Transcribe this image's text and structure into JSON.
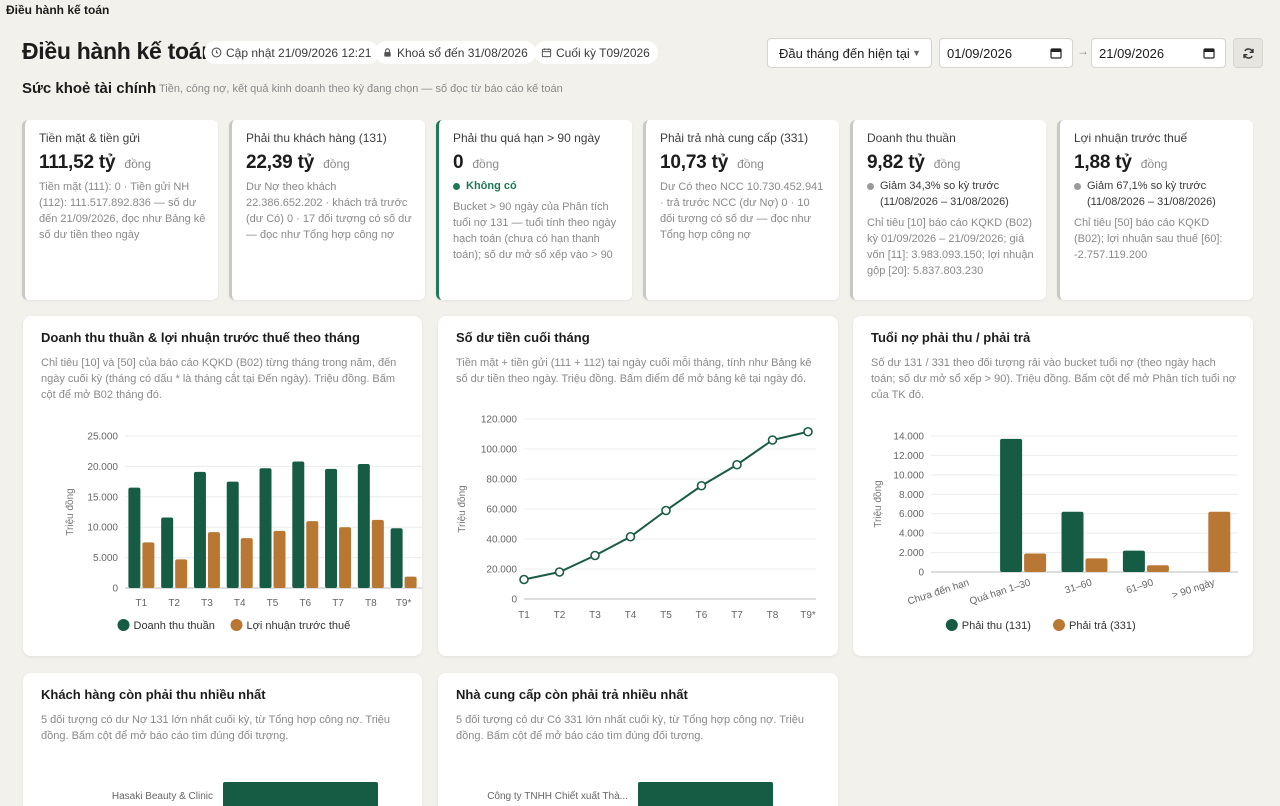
{
  "window_title": "Điều hành kế toán",
  "header": {
    "title": "Điều hành kế toán",
    "updated": "Cập nhật 21/09/2026 12:21",
    "locked": "Khoá sổ đến 31/08/2026",
    "period_end": "Cuối kỳ T09/2026",
    "range_select": "Đầu tháng đến hiện tại",
    "date_from": "01/09/2026",
    "date_to": "21/09/2026",
    "arrow": "→"
  },
  "section": {
    "title": "Sức khoẻ tài chính",
    "subtitle": "Tiền, công nợ, kết quả kinh doanh theo kỳ đang chọn — số đọc từ báo cáo kế toán"
  },
  "kpis": [
    {
      "label": "Tiền mặt & tiền gửi",
      "value": "111,52 tỷ",
      "unit": "đồng",
      "status": "",
      "note": "Tiền mặt (111): 0 · Tiền gửi NH (112): 111.517.892.836 — số dư đến 21/09/2026, đọc như Bảng kê số dư tiền theo ngày"
    },
    {
      "label": "Phải thu khách hàng (131)",
      "value": "22,39 tỷ",
      "unit": "đồng",
      "status": "",
      "note": "Dư Nợ theo khách 22.386.652.202 · khách trả trước (dư Có) 0 · 17 đối tượng có số dư — đọc như Tổng hợp công nợ"
    },
    {
      "label": "Phải thu quá hạn > 90 ngày",
      "value": "0",
      "unit": "đồng",
      "status": "Không có",
      "note": "Bucket > 90 ngày của Phân tích tuổi nợ 131 — tuổi tính theo ngày hạch toán (chưa có hạn thanh toán); số dư mở sổ xếp vào > 90"
    },
    {
      "label": "Phải trả nhà cung cấp (331)",
      "value": "10,73 tỷ",
      "unit": "đồng",
      "status": "",
      "note": "Dư Có theo NCC 10.730.452.941 · trả trước NCC (dư Nợ) 0 · 10 đối tượng có số dư — đọc như Tổng hợp công nợ"
    },
    {
      "label": "Doanh thu thuần",
      "value": "9,82 tỷ",
      "unit": "đồng",
      "status": "Giảm 34,3% so kỳ trước (11/08/2026 – 31/08/2026)",
      "note": "Chỉ tiêu [10] báo cáo KQKD (B02) kỳ 01/09/2026 – 21/09/2026; giá vốn [11]: 3.983.093.150; lợi nhuận gộp [20]: 5.837.803.230"
    },
    {
      "label": "Lợi nhuận trước thuế",
      "value": "1,88 tỷ",
      "unit": "đồng",
      "status": "Giảm 67,1% so kỳ trước (11/08/2026 – 31/08/2026)",
      "note": "Chỉ tiêu [50] báo cáo KQKD (B02); lợi nhuận sau thuế [60]: -2.757.119.200"
    }
  ],
  "colors": {
    "green": "#165c45",
    "orange": "#b87733",
    "line": "#1a5c45",
    "status_green": "#1e7a55",
    "status_gray": "#9a9a9a"
  },
  "cards": {
    "monthly": {
      "title": "Doanh thu thuần & lợi nhuận trước thuế theo tháng",
      "desc": "Chỉ tiêu [10] và [50] của báo cáo KQKD (B02) từng tháng trong năm, đến ngày cuối kỳ (tháng có dấu * là tháng cắt tại Đến ngày). Triệu đồng. Bấm cột để mở B02 tháng đó."
    },
    "cash": {
      "title": "Số dư tiền cuối tháng",
      "desc": "Tiền mặt + tiền gửi (111 + 112) tại ngày cuối mỗi tháng, tính như Bảng kê số dư tiền theo ngày. Triệu đồng. Bấm điểm để mở bảng kê tại ngày đó."
    },
    "aging": {
      "title": "Tuổi nợ phải thu / phải trả",
      "desc": "Số dư 131 / 331 theo đối tượng rải vào bucket tuổi nợ (theo ngày hạch toán; số dư mở sổ xếp > 90). Triệu đồng. Bấm cột để mở Phân tích tuổi nợ của TK đó."
    },
    "top_customers": {
      "title": "Khách hàng còn phải thu nhiều nhất",
      "desc": "5 đối tượng có dư Nợ 131 lớn nhất cuối kỳ, từ Tổng hợp công nợ. Triệu đồng. Bấm cột để mở báo cáo tìm đúng đối tượng."
    },
    "top_suppliers": {
      "title": "Nhà cung cấp còn phải trả nhiều nhất",
      "desc": "5 đối tượng có dư Có 331 lớn nhất cuối kỳ, từ Tổng hợp công nợ. Triệu đồng. Bấm cột để mở báo cáo tìm đúng đối tượng."
    }
  },
  "chart_data": [
    {
      "type": "bar",
      "categories": [
        "T1",
        "T2",
        "T3",
        "T4",
        "T5",
        "T6",
        "T7",
        "T8",
        "T9*"
      ],
      "series": [
        {
          "name": "Doanh thu thuần",
          "values": [
            16500,
            11600,
            19100,
            17500,
            19700,
            20800,
            19600,
            20400,
            9820
          ]
        },
        {
          "name": "Lợi nhuận trước thuế",
          "values": [
            7500,
            4700,
            9200,
            8200,
            9400,
            11000,
            10000,
            11200,
            1880
          ]
        }
      ],
      "ylabel": "Triệu đồng",
      "yticks": [
        "0",
        "5.000",
        "10.000",
        "15.000",
        "20.000",
        "25.000"
      ],
      "ylim": [
        0,
        25000
      ],
      "legend": "bottom"
    },
    {
      "type": "line",
      "categories": [
        "T1",
        "T2",
        "T3",
        "T4",
        "T5",
        "T6",
        "T7",
        "T8",
        "T9*"
      ],
      "series": [
        {
          "values": [
            13000,
            18000,
            29000,
            41500,
            59000,
            75500,
            89500,
            106000,
            111500
          ]
        }
      ],
      "ylabel": "Triệu đồng",
      "yticks": [
        "0",
        "20.000",
        "40.000",
        "60.000",
        "80.000",
        "100.000",
        "120.000"
      ],
      "ylim": [
        0,
        120000
      ]
    },
    {
      "type": "bar",
      "categories": [
        "Chưa đến hạn",
        "Quá hạn 1–30",
        "31–60",
        "61–90",
        "> 90 ngày"
      ],
      "series": [
        {
          "name": "Phải thu (131)",
          "values": [
            0,
            13700,
            6200,
            2200,
            0
          ]
        },
        {
          "name": "Phải trả (331)",
          "values": [
            0,
            1900,
            1400,
            700,
            6200
          ]
        }
      ],
      "ylabel": "Triệu đồng",
      "yticks": [
        "0",
        "2.000",
        "4.000",
        "6.000",
        "8.000",
        "10.000",
        "12.000",
        "14.000"
      ],
      "ylim": [
        0,
        14000
      ],
      "legend": "bottom"
    },
    {
      "type": "bar",
      "orientation": "horizontal",
      "categories": [
        "Hasaki Beauty & Clinic"
      ],
      "series": [
        {
          "values": [
            null
          ]
        }
      ]
    },
    {
      "type": "bar",
      "orientation": "horizontal",
      "categories": [
        "Công ty TNHH Chiết xuất Thà..."
      ],
      "series": [
        {
          "values": [
            null
          ]
        }
      ]
    }
  ]
}
